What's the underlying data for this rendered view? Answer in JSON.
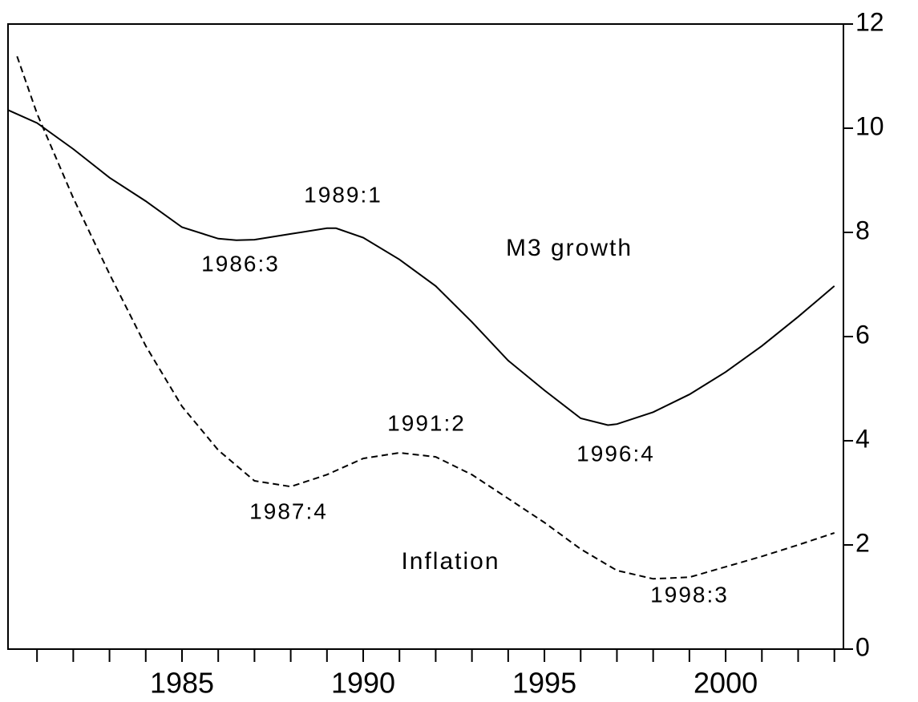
{
  "chart_data": {
    "type": "line",
    "series": [
      {
        "name": "M3 growth",
        "color": "#000000",
        "line_style": "solid",
        "x": [
          1980.2,
          1981,
          1982,
          1983,
          1984,
          1985,
          1986,
          1986.5,
          1987,
          1988,
          1989,
          1989.25,
          1990,
          1991,
          1992,
          1993,
          1994,
          1995,
          1996,
          1996.75,
          1997,
          1998,
          1999,
          2000,
          2001,
          2002,
          2003
        ],
        "values": [
          10.35,
          10.1,
          9.6,
          9.05,
          8.6,
          8.1,
          7.88,
          7.85,
          7.86,
          7.97,
          8.08,
          8.08,
          7.9,
          7.48,
          6.97,
          6.28,
          5.54,
          4.97,
          4.43,
          4.3,
          4.32,
          4.55,
          4.89,
          5.32,
          5.82,
          6.38,
          6.97
        ]
      },
      {
        "name": "Inflation",
        "color": "#000000",
        "line_style": "dashed",
        "x": [
          1980.45,
          1981,
          1982,
          1983,
          1984,
          1985,
          1986,
          1987,
          1988,
          1989,
          1990,
          1991,
          1992,
          1993,
          1994,
          1995,
          1996,
          1997,
          1998,
          1999,
          2000,
          2001,
          2002,
          2003
        ],
        "values": [
          11.38,
          10.28,
          8.66,
          7.2,
          5.82,
          4.66,
          3.82,
          3.23,
          3.12,
          3.35,
          3.66,
          3.77,
          3.69,
          3.35,
          2.89,
          2.43,
          1.92,
          1.51,
          1.35,
          1.38,
          1.58,
          1.78,
          2.0,
          2.23
        ]
      }
    ],
    "annotations": [
      "1989:1",
      "1986:3",
      "M3 growth",
      "1996:4",
      "1991:2",
      "1987:4",
      "Inflation",
      "1998:3"
    ],
    "xlim": [
      1980.2,
      2003.25
    ],
    "xticks": [
      1985,
      1990,
      1995,
      2000
    ],
    "xminorticks": [
      1981,
      1982,
      1983,
      1984,
      1986,
      1987,
      1988,
      1989,
      1991,
      1992,
      1993,
      1994,
      1996,
      1997,
      1998,
      1999,
      2001,
      2002,
      2003
    ],
    "ylim": [
      0,
      12
    ],
    "yticks": [
      0,
      2,
      4,
      6,
      8,
      10,
      12
    ],
    "y_axis_side": "right",
    "grid": false
  }
}
